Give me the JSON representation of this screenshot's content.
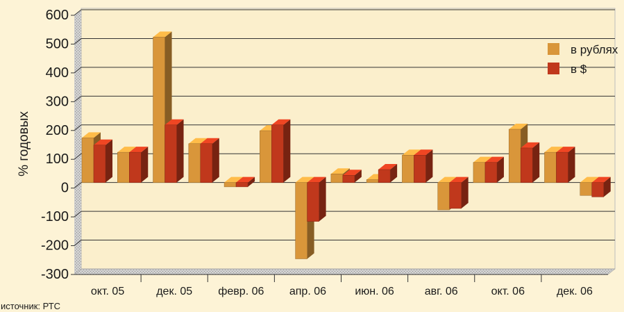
{
  "chart_data": {
    "type": "bar",
    "ylabel": "% годовых",
    "ylim": [
      -300,
      600
    ],
    "yticks": [
      "600",
      "500",
      "400",
      "300",
      "200",
      "100",
      "0",
      "-100",
      "-200",
      "-300"
    ],
    "category_labels": [
      "окт. 05",
      "дек. 05",
      "февр. 06",
      "апр. 06",
      "июн. 06",
      "авг. 06",
      "окт. 06",
      "дек. 06"
    ],
    "n_groups": 15,
    "series": [
      {
        "name": "в рублях",
        "color": "#d9963a",
        "values": [
          155,
          105,
          505,
          135,
          -15,
          180,
          -265,
          30,
          10,
          95,
          -95,
          70,
          185,
          105,
          -45
        ]
      },
      {
        "name": "в $",
        "color": "#c0381c",
        "values": [
          130,
          105,
          200,
          135,
          -15,
          200,
          -135,
          25,
          45,
          95,
          -90,
          70,
          120,
          105,
          -50
        ]
      }
    ],
    "legend_position": "right",
    "grid": true
  },
  "source_note": "источник: РТС"
}
